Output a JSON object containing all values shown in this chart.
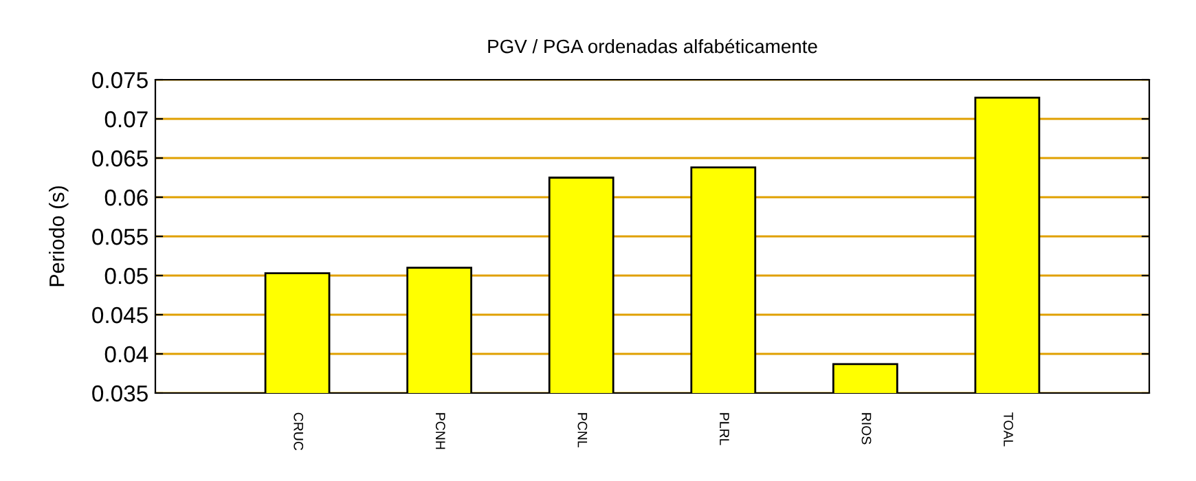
{
  "chart_data": {
    "type": "bar",
    "title": "PGV / PGA ordenadas alfabéticamente",
    "ylabel": "Periodo (s)",
    "categories": [
      "CRUC",
      "PCNH",
      "PCNL",
      "PLRL",
      "RIOS",
      "TOAL"
    ],
    "values": [
      0.0503,
      0.051,
      0.0625,
      0.0638,
      0.0387,
      0.0727
    ],
    "color": "#ffff00",
    "ylim": [
      0.035,
      0.075
    ],
    "yticks": [
      0.035,
      0.04,
      0.045,
      0.05,
      0.055,
      0.06,
      0.065,
      0.07,
      0.075
    ],
    "grid": "y"
  }
}
